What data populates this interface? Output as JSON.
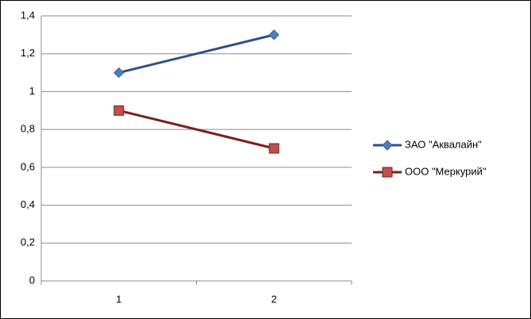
{
  "chart_data": {
    "type": "line",
    "categories": [
      "1",
      "2"
    ],
    "series": [
      {
        "name": "ЗАО \"Аквалайн\"",
        "color": "#2f4f8f",
        "marker": "diamond",
        "marker_color": "#4a7ebb",
        "values": [
          1.1,
          1.3
        ]
      },
      {
        "name": "ООО \"Меркурий\"",
        "color": "#7b1f1f",
        "marker": "square",
        "marker_color": "#c0504d",
        "values": [
          0.9,
          0.7
        ]
      }
    ],
    "ylim": [
      0,
      1.4
    ],
    "yticks": [
      0,
      {
        "value": 0.2,
        "label": "0,2"
      },
      {
        "value": 0.4,
        "label": "0,4"
      },
      {
        "value": 0.6,
        "label": "0,6"
      },
      {
        "value": 0.8,
        "label": "0,8"
      },
      1,
      {
        "value": 1.2,
        "label": "1,2"
      },
      {
        "value": 1.4,
        "label": "1,4"
      }
    ],
    "grid": true,
    "legend": "right"
  }
}
